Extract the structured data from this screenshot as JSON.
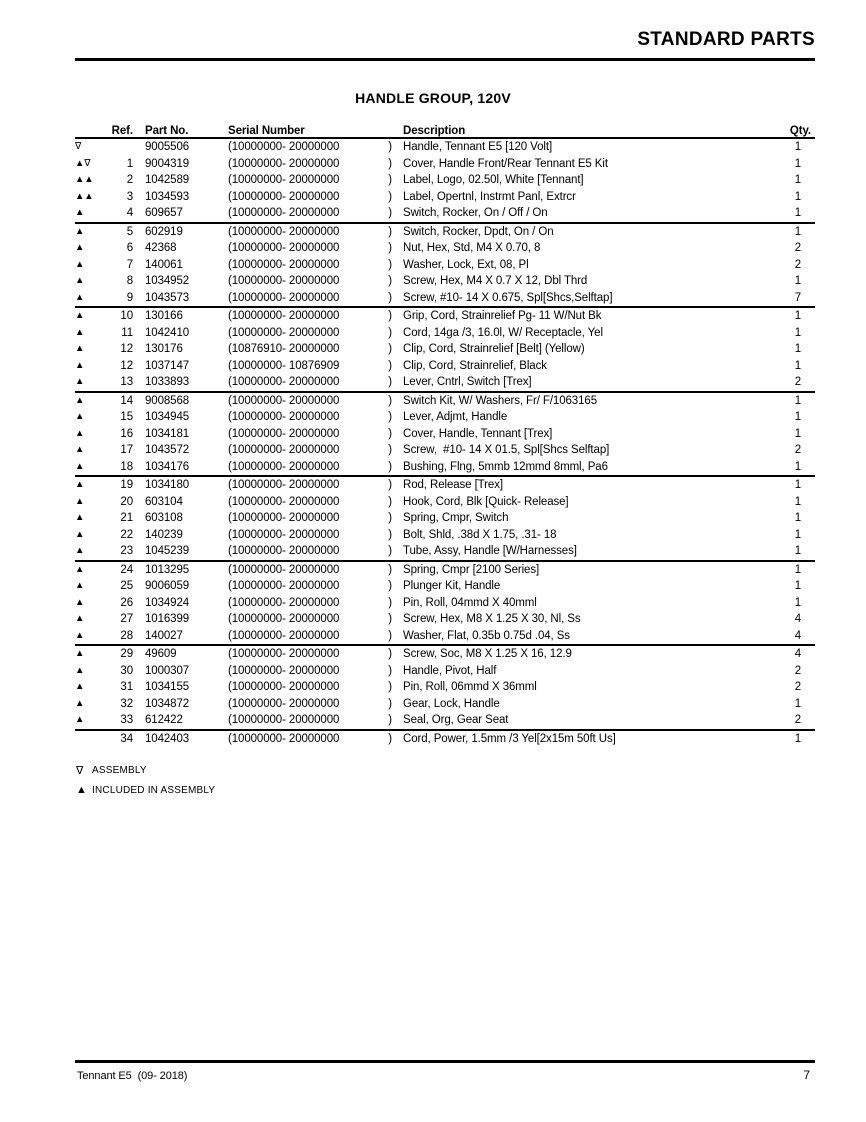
{
  "page": {
    "header_title": "STANDARD PARTS",
    "section_title": "HANDLE GROUP, 120V",
    "footer_left": "Tennant E5  (09- 2018)",
    "footer_page": "7"
  },
  "table": {
    "columns": {
      "ref": "Ref.",
      "part": "Part No.",
      "serial": "Serial Number",
      "desc": "Description",
      "qty": "Qty."
    },
    "serial_close": ")",
    "groups": [
      [
        {
          "sym": "∇",
          "ref": "",
          "part": "9005506",
          "serial": "(10000000- 20000000",
          "desc": "Handle, Tennant E5 [120 Volt]",
          "qty": "1"
        },
        {
          "sym": "▲∇",
          "ref": "1",
          "part": "9004319",
          "serial": "(10000000- 20000000",
          "desc": "Cover, Handle Front/Rear Tennant E5 Kit",
          "qty": "1"
        },
        {
          "sym": "▲▲",
          "ref": "2",
          "part": "1042589",
          "serial": "(10000000- 20000000",
          "desc": "Label, Logo, 02.50l, White [Tennant]",
          "qty": "1"
        },
        {
          "sym": "▲▲",
          "ref": "3",
          "part": "1034593",
          "serial": "(10000000- 20000000",
          "desc": "Label, Opertnl, Instrmt Panl, Extrcr",
          "qty": "1"
        },
        {
          "sym": "▲",
          "ref": "4",
          "part": "609657",
          "serial": "(10000000- 20000000",
          "desc": "Switch, Rocker, On / Off / On",
          "qty": "1"
        }
      ],
      [
        {
          "sym": "▲",
          "ref": "5",
          "part": "602919",
          "serial": "(10000000- 20000000",
          "desc": "Switch, Rocker, Dpdt, On / On",
          "qty": "1"
        },
        {
          "sym": "▲",
          "ref": "6",
          "part": "42368",
          "serial": "(10000000- 20000000",
          "desc": "Nut, Hex, Std, M4 X 0.70, 8",
          "qty": "2"
        },
        {
          "sym": "▲",
          "ref": "7",
          "part": "140061",
          "serial": "(10000000- 20000000",
          "desc": "Washer, Lock, Ext, 08, Pl",
          "qty": "2"
        },
        {
          "sym": "▲",
          "ref": "8",
          "part": "1034952",
          "serial": "(10000000- 20000000",
          "desc": "Screw, Hex, M4 X 0.7 X 12, Dbl Thrd",
          "qty": "1"
        },
        {
          "sym": "▲",
          "ref": "9",
          "part": "1043573",
          "serial": "(10000000- 20000000",
          "desc": "Screw, #10- 14 X 0.675, Spl[Shcs,Selftap]",
          "qty": "7"
        }
      ],
      [
        {
          "sym": "▲",
          "ref": "10",
          "part": "130166",
          "serial": "(10000000- 20000000",
          "desc": "Grip, Cord, Strainrelief Pg- 11 W/Nut Bk",
          "qty": "1"
        },
        {
          "sym": "▲",
          "ref": "11",
          "part": "1042410",
          "serial": "(10000000- 20000000",
          "desc": "Cord, 14ga /3, 16.0l, W/ Receptacle, Yel",
          "qty": "1"
        },
        {
          "sym": "▲",
          "ref": "12",
          "part": "130176",
          "serial": "(10876910- 20000000",
          "desc": "Clip, Cord, Strainrelief [Belt] (Yellow)",
          "qty": "1"
        },
        {
          "sym": "▲",
          "ref": "12",
          "part": "1037147",
          "serial": "(10000000- 10876909",
          "desc": "Clip, Cord, Strainrelief, Black",
          "qty": "1"
        },
        {
          "sym": "▲",
          "ref": "13",
          "part": "1033893",
          "serial": "(10000000- 20000000",
          "desc": "Lever, Cntrl, Switch [Trex]",
          "qty": "2"
        }
      ],
      [
        {
          "sym": "▲",
          "ref": "14",
          "part": "9008568",
          "serial": "(10000000- 20000000",
          "desc": "Switch Kit, W/ Washers, Fr/ F/1063165",
          "qty": "1"
        },
        {
          "sym": "▲",
          "ref": "15",
          "part": "1034945",
          "serial": "(10000000- 20000000",
          "desc": "Lever, Adjmt, Handle",
          "qty": "1"
        },
        {
          "sym": "▲",
          "ref": "16",
          "part": "1034181",
          "serial": "(10000000- 20000000",
          "desc": "Cover, Handle, Tennant [Trex]",
          "qty": "1"
        },
        {
          "sym": "▲",
          "ref": "17",
          "part": "1043572",
          "serial": "(10000000- 20000000",
          "desc": "Screw,  #10- 14 X 01.5, Spl[Shcs Selftap]",
          "qty": "2"
        },
        {
          "sym": "▲",
          "ref": "18",
          "part": "1034176",
          "serial": "(10000000- 20000000",
          "desc": "Bushing, Flng, 5mmb 12mmd 8mml, Pa6",
          "qty": "1"
        }
      ],
      [
        {
          "sym": "▲",
          "ref": "19",
          "part": "1034180",
          "serial": "(10000000- 20000000",
          "desc": "Rod, Release [Trex]",
          "qty": "1"
        },
        {
          "sym": "▲",
          "ref": "20",
          "part": "603104",
          "serial": "(10000000- 20000000",
          "desc": "Hook, Cord, Blk [Quick- Release]",
          "qty": "1"
        },
        {
          "sym": "▲",
          "ref": "21",
          "part": "603108",
          "serial": "(10000000- 20000000",
          "desc": "Spring, Cmpr, Switch",
          "qty": "1"
        },
        {
          "sym": "▲",
          "ref": "22",
          "part": "140239",
          "serial": "(10000000- 20000000",
          "desc": "Bolt, Shld, .38d X 1.75, .31- 18",
          "qty": "1"
        },
        {
          "sym": "▲",
          "ref": "23",
          "part": "1045239",
          "serial": "(10000000- 20000000",
          "desc": "Tube, Assy, Handle [W/Harnesses]",
          "qty": "1"
        }
      ],
      [
        {
          "sym": "▲",
          "ref": "24",
          "part": "1013295",
          "serial": "(10000000- 20000000",
          "desc": "Spring, Cmpr [2100 Series]",
          "qty": "1"
        },
        {
          "sym": "▲",
          "ref": "25",
          "part": "9006059",
          "serial": "(10000000- 20000000",
          "desc": "Plunger Kit, Handle",
          "qty": "1"
        },
        {
          "sym": "▲",
          "ref": "26",
          "part": "1034924",
          "serial": "(10000000- 20000000",
          "desc": "Pin, Roll, 04mmd X 40mml",
          "qty": "1"
        },
        {
          "sym": "▲",
          "ref": "27",
          "part": "1016399",
          "serial": "(10000000- 20000000",
          "desc": "Screw, Hex, M8 X 1.25 X 30, Nl, Ss",
          "qty": "4"
        },
        {
          "sym": "▲",
          "ref": "28",
          "part": "140027",
          "serial": "(10000000- 20000000",
          "desc": "Washer, Flat, 0.35b 0.75d .04, Ss",
          "qty": "4"
        }
      ],
      [
        {
          "sym": "▲",
          "ref": "29",
          "part": "49609",
          "serial": "(10000000- 20000000",
          "desc": "Screw, Soc, M8 X 1.25 X 16, 12.9",
          "qty": "4"
        },
        {
          "sym": "▲",
          "ref": "30",
          "part": "1000307",
          "serial": "(10000000- 20000000",
          "desc": "Handle, Pivot, Half",
          "qty": "2"
        },
        {
          "sym": "▲",
          "ref": "31",
          "part": "1034155",
          "serial": "(10000000- 20000000",
          "desc": "Pin, Roll, 06mmd X 36mml",
          "qty": "2"
        },
        {
          "sym": "▲",
          "ref": "32",
          "part": "1034872",
          "serial": "(10000000- 20000000",
          "desc": "Gear, Lock, Handle",
          "qty": "1"
        },
        {
          "sym": "▲",
          "ref": "33",
          "part": "612422",
          "serial": "(10000000- 20000000",
          "desc": "Seal, Org, Gear Seat",
          "qty": "2"
        }
      ],
      [
        {
          "sym": "",
          "ref": "34",
          "part": "1042403",
          "serial": "(10000000- 20000000",
          "desc": "Cord, Power, 1.5mm /3 Yel[2x15m 50ft Us]",
          "qty": "1"
        }
      ]
    ]
  },
  "legend": [
    {
      "sym": "∇",
      "label": "ASSEMBLY"
    },
    {
      "sym": "▲",
      "label": "INCLUDED IN ASSEMBLY"
    }
  ]
}
